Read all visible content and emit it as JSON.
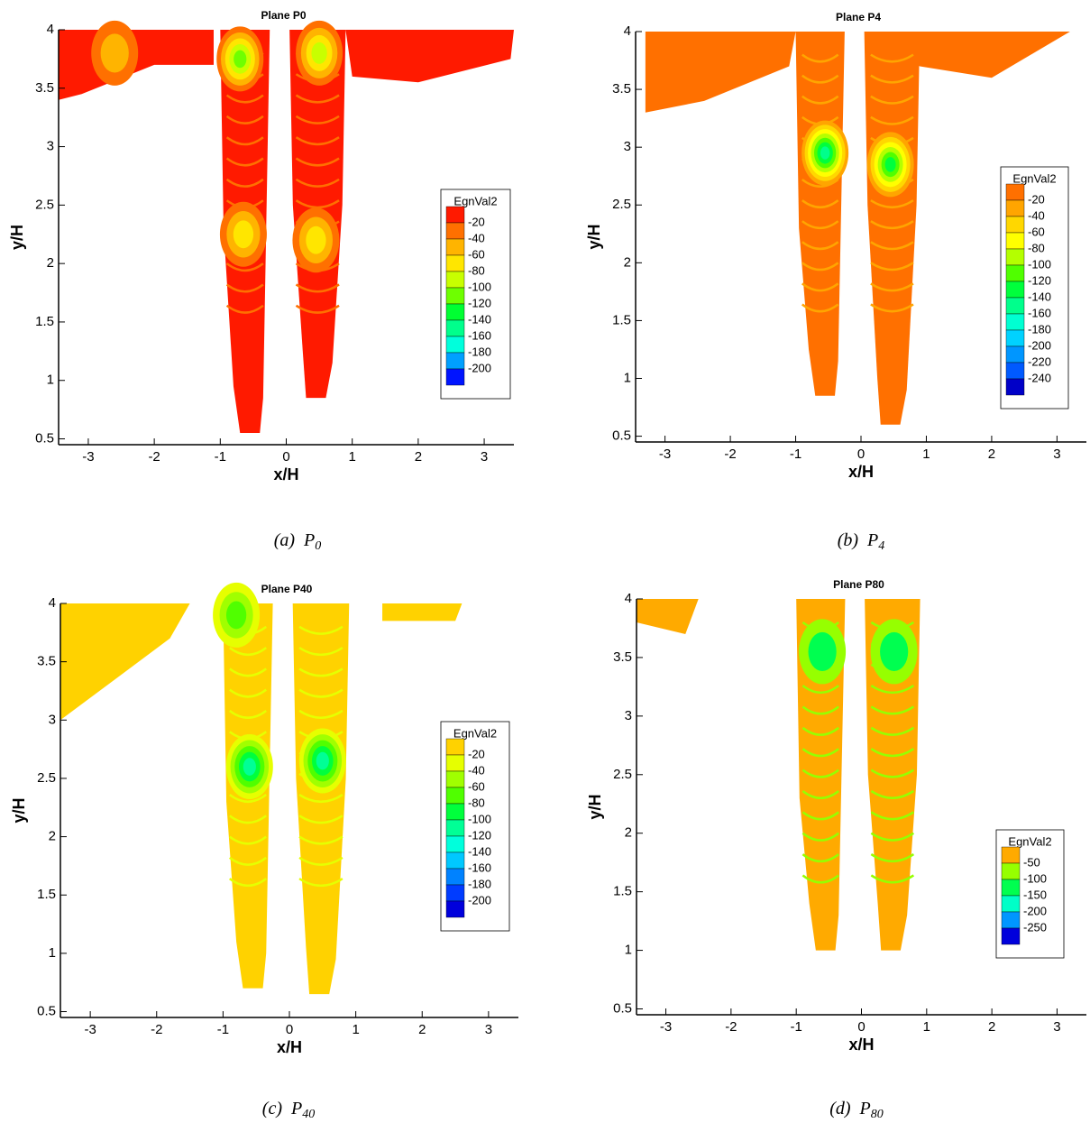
{
  "chart_data": [
    {
      "type": "contour",
      "title": "Plane P0",
      "xlabel": "x/H",
      "ylabel": "y/H",
      "xlim": [
        -3.45,
        3.45
      ],
      "ylim": [
        0.45,
        4
      ],
      "xticks": [
        -3,
        -2,
        -1,
        0,
        1,
        2,
        3
      ],
      "yticks": [
        0.5,
        1,
        1.5,
        2,
        2.5,
        3,
        3.5,
        4
      ],
      "legend": {
        "title": "EgnVal2",
        "levels": [
          -20,
          -40,
          -60,
          -80,
          -100,
          -120,
          -140,
          -160,
          -180,
          -200
        ],
        "colors": [
          "#ff1a00",
          "#ff7000",
          "#ffb400",
          "#ffe600",
          "#c8ff00",
          "#6eff00",
          "#00ff32",
          "#00ff8c",
          "#00ffdc",
          "#00a0ff",
          "#0014ff"
        ]
      },
      "caption": {
        "prefix": "(a)",
        "symbol": "P",
        "subscript": "0"
      }
    },
    {
      "type": "contour",
      "title": "Plane P4",
      "xlabel": "x/H",
      "ylabel": "y/H",
      "xlim": [
        -3.45,
        3.45
      ],
      "ylim": [
        0.45,
        4
      ],
      "xticks": [
        -3,
        -2,
        -1,
        0,
        1,
        2,
        3
      ],
      "yticks": [
        0.5,
        1,
        1.5,
        2,
        2.5,
        3,
        3.5,
        4
      ],
      "legend": {
        "title": "EgnVal2",
        "levels": [
          -20,
          -40,
          -60,
          -80,
          -100,
          -120,
          -140,
          -160,
          -180,
          -200,
          -220,
          -240
        ],
        "colors": [
          "#ff7000",
          "#ffa500",
          "#ffd700",
          "#ffff00",
          "#b4ff00",
          "#50ff00",
          "#00ff3c",
          "#00ff8c",
          "#00ffd2",
          "#00d2ff",
          "#0096ff",
          "#005aff",
          "#0000c8"
        ]
      },
      "caption": {
        "prefix": "(b)",
        "symbol": "P",
        "subscript": "4"
      }
    },
    {
      "type": "contour",
      "title": "Plane P40",
      "xlabel": "x/H",
      "ylabel": "y/H",
      "xlim": [
        -3.45,
        3.45
      ],
      "ylim": [
        0.45,
        4
      ],
      "xticks": [
        -3,
        -2,
        -1,
        0,
        1,
        2,
        3
      ],
      "yticks": [
        0.5,
        1,
        1.5,
        2,
        2.5,
        3,
        3.5,
        4
      ],
      "legend": {
        "title": "EgnVal2",
        "levels": [
          -20,
          -40,
          -60,
          -80,
          -100,
          -120,
          -140,
          -160,
          -180,
          -200
        ],
        "colors": [
          "#ffd200",
          "#e6ff00",
          "#a0ff00",
          "#50ff00",
          "#00ff3c",
          "#00ff96",
          "#00ffdc",
          "#00c8ff",
          "#0082ff",
          "#003cff",
          "#0000dc"
        ]
      },
      "caption": {
        "prefix": "(c)",
        "symbol": "P",
        "subscript": "40"
      }
    },
    {
      "type": "contour",
      "title": "Plane P80",
      "xlabel": "x/H",
      "ylabel": "y/H",
      "xlim": [
        -3.45,
        3.45
      ],
      "ylim": [
        0.45,
        4
      ],
      "xticks": [
        -3,
        -2,
        -1,
        0,
        1,
        2,
        3
      ],
      "yticks": [
        0.5,
        1,
        1.5,
        2,
        2.5,
        3,
        3.5,
        4
      ],
      "legend": {
        "title": "EgnVal2",
        "levels": [
          -50,
          -100,
          -150,
          -200,
          -250
        ],
        "colors": [
          "#ffaa00",
          "#96ff00",
          "#00ff50",
          "#00ffc8",
          "#0096ff",
          "#0000dc"
        ]
      },
      "caption": {
        "prefix": "(d)",
        "symbol": "P",
        "subscript": "80"
      }
    }
  ]
}
